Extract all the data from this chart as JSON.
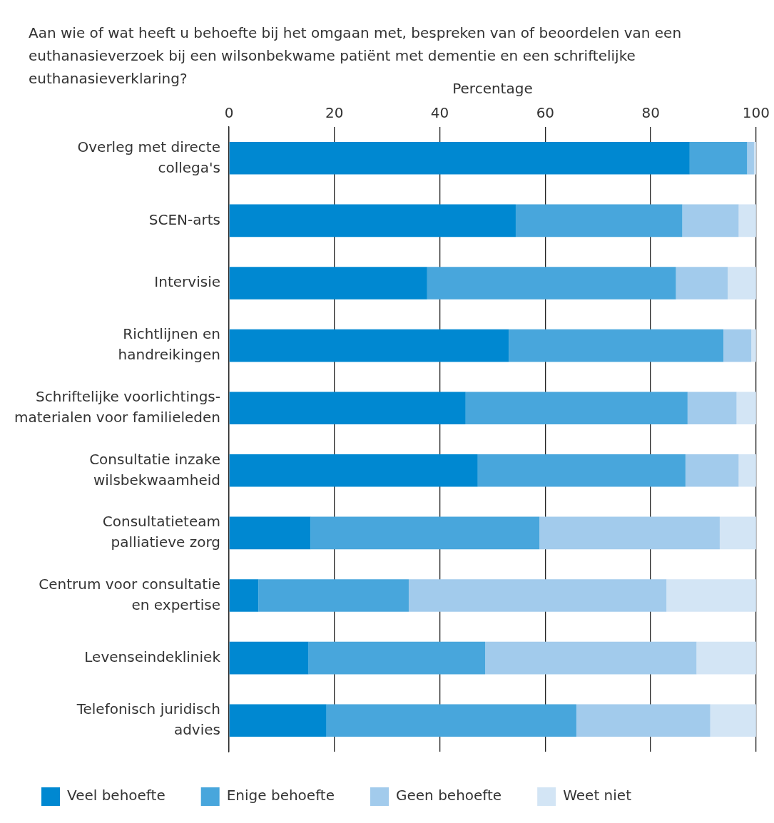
{
  "chart_data": {
    "type": "bar",
    "orientation": "horizontal",
    "stacked": true,
    "title": "Aan wie of wat heeft u behoefte bij het omgaan met, bespreken van of beoordelen van een euthanasieverzoek bij een wilsonbekwame patiënt met dementie en een schriftelijke euthanasieverklaring?",
    "xlabel": "Percentage",
    "categories": [
      "Overleg met directe\ncollega's",
      "SCEN-arts",
      "Intervisie",
      "Richtlijnen en\nhandreikingen",
      "Schriftelijke voorlichtings-\nmaterialen voor familieleden",
      "Consultatie inzake\nwilsbekwaamheid",
      "Consultatieteam\npalliatieve zorg",
      "Centrum voor consultatie\nen expertise",
      "Levenseindekliniek",
      "Telefonisch juridisch\nadvies"
    ],
    "series": [
      {
        "name": "Veel behoefte",
        "color": "#0088d1",
        "values": [
          87.4,
          54.4,
          37.6,
          53.1,
          44.9,
          47.2,
          15.5,
          5.6,
          15.1,
          18.5
        ]
      },
      {
        "name": "Enige behoefte",
        "color": "#48a6dc",
        "values": [
          10.9,
          31.6,
          47.2,
          40.7,
          42.1,
          39.4,
          43.4,
          28.5,
          33.5,
          47.4
        ]
      },
      {
        "name": "Geen behoefte",
        "color": "#a2cbec",
        "values": [
          1.3,
          10.7,
          9.8,
          5.3,
          9.3,
          10.1,
          34.2,
          48.9,
          40.1,
          25.4
        ]
      },
      {
        "name": "Weet niet",
        "color": "#d3e5f5",
        "values": [
          0.4,
          3.3,
          5.4,
          0.9,
          3.7,
          3.3,
          6.9,
          17.0,
          11.3,
          8.7
        ]
      }
    ],
    "xlim": [
      0,
      100
    ],
    "xticks": [
      0,
      20,
      40,
      60,
      80,
      100
    ],
    "grid": "x",
    "legend": "bottom left"
  }
}
